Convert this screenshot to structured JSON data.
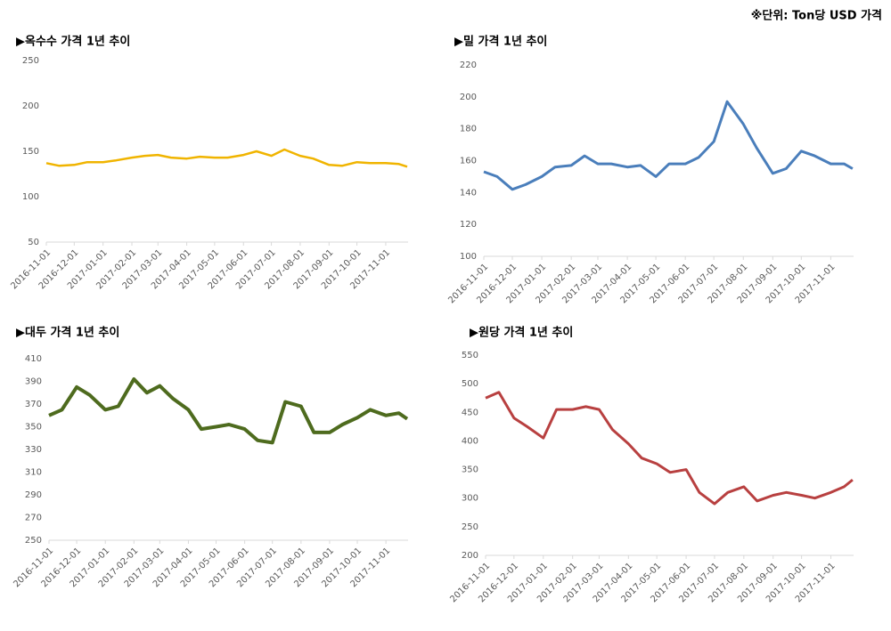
{
  "note": "※단위: Ton당 USD 가격",
  "chart_data": [
    {
      "type": "line",
      "title": "▶옥수수 가격 1년 추이",
      "color": "#f0b400",
      "x": [
        "2016-11-01",
        "2016-11-15",
        "2016-12-01",
        "2016-12-15",
        "2017-01-01",
        "2017-01-15",
        "2017-02-01",
        "2017-02-15",
        "2017-03-01",
        "2017-03-15",
        "2017-04-01",
        "2017-04-15",
        "2017-05-01",
        "2017-05-15",
        "2017-06-01",
        "2017-06-15",
        "2017-07-01",
        "2017-07-15",
        "2017-08-01",
        "2017-08-15",
        "2017-09-01",
        "2017-09-15",
        "2017-10-01",
        "2017-10-15",
        "2017-11-01",
        "2017-11-15",
        "2017-11-24"
      ],
      "values": [
        137,
        134,
        135,
        138,
        138,
        140,
        143,
        145,
        146,
        143,
        142,
        144,
        143,
        143,
        146,
        150,
        145,
        152,
        145,
        142,
        135,
        134,
        138,
        137,
        137,
        136,
        133
      ],
      "xlim": [
        "2016-11-01",
        "2017-11-25"
      ],
      "xticks": [
        "2016-11-01",
        "2016-12-01",
        "2017-01-01",
        "2017-02-01",
        "2017-03-01",
        "2017-04-01",
        "2017-05-01",
        "2017-06-01",
        "2017-07-01",
        "2017-08-01",
        "2017-09-01",
        "2017-10-01",
        "2017-11-01"
      ],
      "ylim": [
        50,
        250
      ],
      "yticks": [
        50,
        100,
        150,
        200,
        250
      ]
    },
    {
      "type": "line",
      "title": "▶밀 가격 1년 추이",
      "color": "#4a7ebb",
      "x": [
        "2016-11-01",
        "2016-11-15",
        "2016-12-01",
        "2016-12-15",
        "2017-01-01",
        "2017-01-15",
        "2017-02-01",
        "2017-02-15",
        "2017-03-01",
        "2017-03-15",
        "2017-04-01",
        "2017-04-15",
        "2017-05-01",
        "2017-05-15",
        "2017-06-01",
        "2017-06-15",
        "2017-07-01",
        "2017-07-15",
        "2017-08-01",
        "2017-08-15",
        "2017-09-01",
        "2017-09-15",
        "2017-10-01",
        "2017-10-15",
        "2017-11-01",
        "2017-11-15",
        "2017-11-24"
      ],
      "values": [
        153,
        150,
        142,
        145,
        150,
        156,
        157,
        163,
        158,
        158,
        156,
        157,
        150,
        158,
        158,
        162,
        172,
        197,
        183,
        168,
        152,
        155,
        166,
        163,
        158,
        158,
        155
      ],
      "xlim": [
        "2016-11-01",
        "2017-11-25"
      ],
      "xticks": [
        "2016-11-01",
        "2016-12-01",
        "2017-01-01",
        "2017-02-01",
        "2017-03-01",
        "2017-04-01",
        "2017-05-01",
        "2017-06-01",
        "2017-07-01",
        "2017-08-01",
        "2017-09-01",
        "2017-10-01",
        "2017-11-01"
      ],
      "ylim": [
        100,
        220
      ],
      "yticks": [
        100,
        120,
        140,
        160,
        180,
        200,
        220
      ]
    },
    {
      "type": "line",
      "title": "▶대두 가격 1년 추이",
      "color": "#4e6b1e",
      "x": [
        "2016-11-01",
        "2016-11-15",
        "2016-12-01",
        "2016-12-15",
        "2017-01-01",
        "2017-01-15",
        "2017-02-01",
        "2017-02-15",
        "2017-03-01",
        "2017-03-15",
        "2017-04-01",
        "2017-04-15",
        "2017-05-01",
        "2017-05-15",
        "2017-06-01",
        "2017-06-15",
        "2017-07-01",
        "2017-07-15",
        "2017-08-01",
        "2017-08-15",
        "2017-09-01",
        "2017-09-15",
        "2017-10-01",
        "2017-10-15",
        "2017-11-01",
        "2017-11-15",
        "2017-11-24"
      ],
      "values": [
        360,
        365,
        385,
        378,
        365,
        368,
        392,
        380,
        386,
        375,
        365,
        348,
        350,
        352,
        348,
        338,
        336,
        372,
        368,
        345,
        345,
        352,
        358,
        365,
        360,
        362,
        357
      ],
      "xlim": [
        "2016-11-01",
        "2017-11-25"
      ],
      "xticks": [
        "2016-11-01",
        "2016-12-01",
        "2017-01-01",
        "2017-02-01",
        "2017-03-01",
        "2017-04-01",
        "2017-05-01",
        "2017-06-01",
        "2017-07-01",
        "2017-08-01",
        "2017-09-01",
        "2017-10-01",
        "2017-11-01"
      ],
      "ylim": [
        250,
        410
      ],
      "yticks": [
        250,
        270,
        290,
        310,
        330,
        350,
        370,
        390,
        410
      ]
    },
    {
      "type": "line",
      "title": "▶원당 가격 1년 추이",
      "color": "#b84040",
      "x": [
        "2016-11-01",
        "2016-11-15",
        "2016-12-01",
        "2016-12-15",
        "2017-01-01",
        "2017-01-15",
        "2017-02-01",
        "2017-02-15",
        "2017-03-01",
        "2017-03-15",
        "2017-04-01",
        "2017-04-15",
        "2017-05-01",
        "2017-05-15",
        "2017-06-01",
        "2017-06-15",
        "2017-07-01",
        "2017-07-15",
        "2017-08-01",
        "2017-08-15",
        "2017-09-01",
        "2017-09-15",
        "2017-10-01",
        "2017-10-15",
        "2017-11-01",
        "2017-11-15",
        "2017-11-24"
      ],
      "values": [
        475,
        485,
        440,
        425,
        405,
        455,
        455,
        460,
        455,
        420,
        395,
        370,
        360,
        345,
        350,
        310,
        290,
        310,
        320,
        295,
        305,
        310,
        305,
        300,
        310,
        320,
        332
      ],
      "xlim": [
        "2016-11-01",
        "2017-11-25"
      ],
      "xticks": [
        "2016-11-01",
        "2016-12-01",
        "2017-01-01",
        "2017-02-01",
        "2017-03-01",
        "2017-04-01",
        "2017-05-01",
        "2017-06-01",
        "2017-07-01",
        "2017-08-01",
        "2017-09-01",
        "2017-10-01",
        "2017-11-01"
      ],
      "ylim": [
        200,
        550
      ],
      "yticks": [
        200,
        250,
        300,
        350,
        400,
        450,
        500,
        550
      ]
    }
  ]
}
